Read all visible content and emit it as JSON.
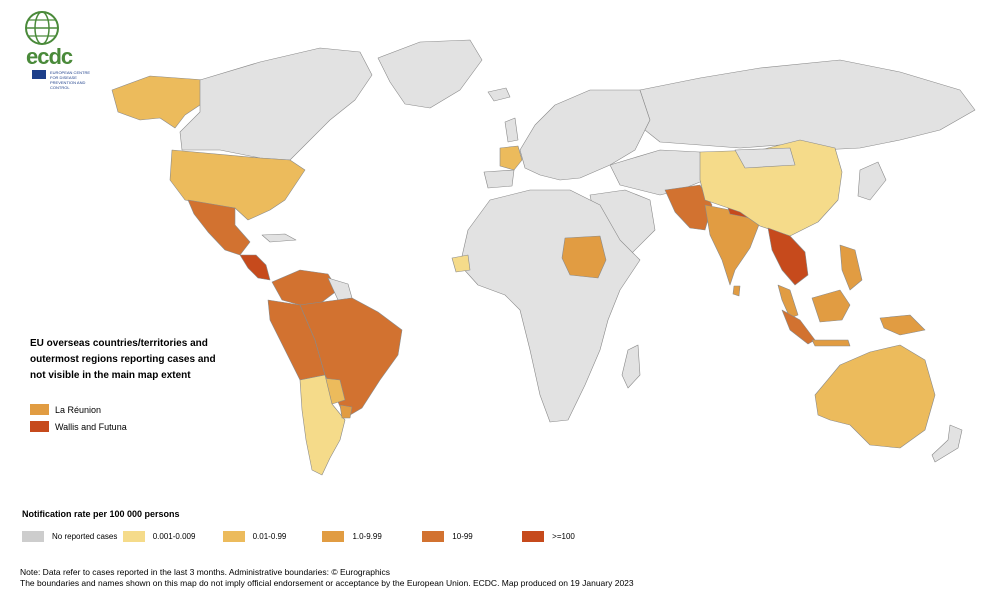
{
  "logo": {
    "text": "ecdc",
    "subtitle": "EUROPEAN CENTRE FOR DISEASE PREVENTION AND CONTROL"
  },
  "colors": {
    "none": "#cdcdcd",
    "r1": "#f5db8a",
    "r2": "#ecbb5c",
    "r3": "#e19c42",
    "r4": "#d27230",
    "r5": "#c64a1c",
    "land_default": "#e2e2e2",
    "border": "#8a8a8a"
  },
  "inset_legend": {
    "title": "EU overseas countries/territories and outermost regions reporting cases and not visible in the main map extent",
    "items": [
      {
        "label": "La Réunion",
        "color": "#e19c42"
      },
      {
        "label": "Wallis and Futuna",
        "color": "#c64a1c"
      }
    ]
  },
  "rate_legend": {
    "title": "Notification rate per 100 000 persons",
    "items": [
      {
        "label": "No reported cases",
        "color": "#cdcdcd"
      },
      {
        "label": "0.001-0.009",
        "color": "#f5db8a"
      },
      {
        "label": "0.01-0.99",
        "color": "#ecbb5c"
      },
      {
        "label": "1.0-9.99",
        "color": "#e19c42"
      },
      {
        "label": "10-99",
        "color": "#d27230"
      },
      {
        "label": ">=100",
        "color": "#c64a1c"
      }
    ]
  },
  "note": {
    "line1": "Note: Data refer to cases reported in the last 3 months. Administrative boundaries: © Eurographics",
    "line2": "The boundaries and names shown on this map do not imply official endorsement or acceptance by the European Union. ECDC. Map produced on 19 January 2023"
  }
}
